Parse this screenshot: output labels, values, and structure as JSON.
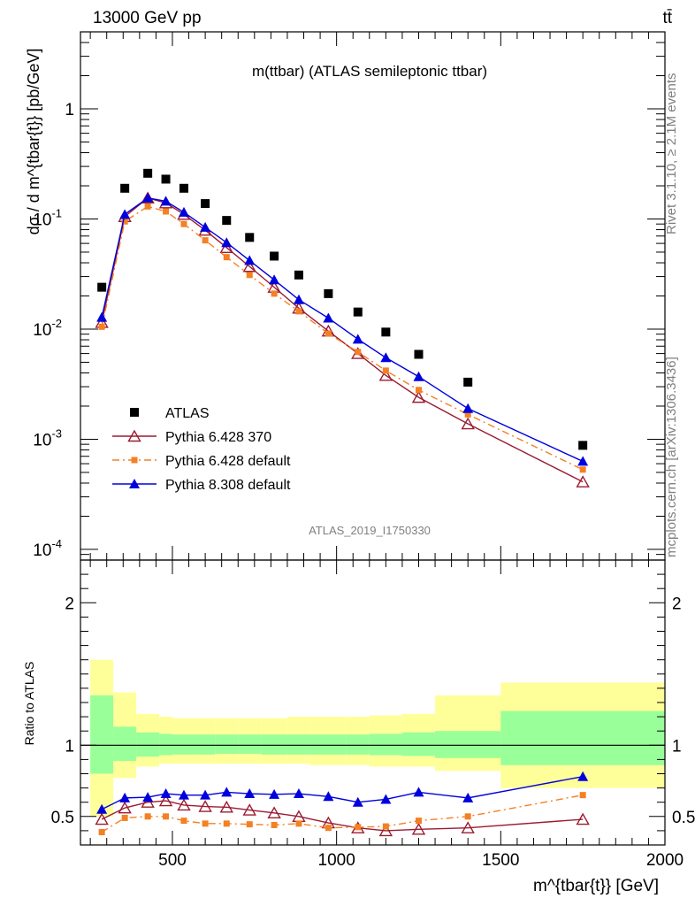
{
  "header": {
    "left": "13000 GeV pp",
    "right": "tt̄"
  },
  "side": {
    "rivet": "Rivet 3.1.10, ≥ 2.1M events",
    "mcplots": "mcplots.cern.ch [arXiv:1306.3436]"
  },
  "chart_data": [
    {
      "type": "scatter",
      "title": "m(ttbar) (ATLAS semileptonic ttbar)",
      "analysis_id": "ATLAS_2019_I1750330",
      "ylabel": "dσ / d m^{tbar{t}} [pb/GeV]",
      "yscale": "log",
      "xlim": [
        220,
        2000
      ],
      "ylim": [
        8e-05,
        5
      ],
      "ytick_labels": [
        "10^{-4}",
        "10^{-3}",
        "10^{-2}",
        "10^{-1}",
        "1"
      ],
      "legend_position": "lower-left",
      "x": [
        285,
        355,
        425,
        480,
        535,
        600,
        665,
        735,
        810,
        885,
        975,
        1065,
        1150,
        1250,
        1400,
        1750
      ],
      "series": [
        {
          "name": "ATLAS",
          "color": "#000000",
          "marker": "square",
          "values": [
            0.024,
            0.19,
            0.26,
            0.23,
            0.19,
            0.138,
            0.097,
            0.068,
            0.046,
            0.031,
            0.021,
            0.0143,
            0.0094,
            0.0059,
            0.0033,
            0.00088
          ]
        },
        {
          "name": "Pythia 6.428 370",
          "color": "#9b1b30",
          "marker": "open-triangle",
          "line": "solid",
          "values": [
            0.0115,
            0.105,
            0.155,
            0.14,
            0.11,
            0.079,
            0.055,
            0.037,
            0.024,
            0.0155,
            0.0096,
            0.006,
            0.0038,
            0.0024,
            0.00138,
            0.00041
          ]
        },
        {
          "name": "Pythia 6.428 default",
          "color": "#f48024",
          "marker": "square-small",
          "line": "dashdot",
          "values": [
            0.0105,
            0.095,
            0.13,
            0.117,
            0.09,
            0.064,
            0.045,
            0.031,
            0.021,
            0.0145,
            0.0091,
            0.0062,
            0.0042,
            0.0028,
            0.00168,
            0.00053
          ]
        },
        {
          "name": "Pythia 8.308 default",
          "color": "#0000dd",
          "marker": "triangle",
          "line": "solid",
          "values": [
            0.0128,
            0.11,
            0.155,
            0.145,
            0.115,
            0.084,
            0.061,
            0.042,
            0.028,
            0.0185,
            0.0126,
            0.0081,
            0.0055,
            0.0037,
            0.0019,
            0.00063
          ]
        }
      ]
    },
    {
      "type": "line",
      "ylabel": "Ratio to ATLAS",
      "xlabel": "m^{tbar{t}} [GeV]",
      "xlim": [
        220,
        2000
      ],
      "ylim": [
        0.3,
        2.3
      ],
      "xticks": [
        500,
        1000,
        1500,
        2000
      ],
      "yticks": [
        0.5,
        1,
        2
      ],
      "bin_edges": [
        250,
        320,
        390,
        460,
        500,
        570,
        630,
        700,
        770,
        850,
        920,
        1030,
        1100,
        1200,
        1300,
        1500,
        2000
      ],
      "bands": {
        "inner": [
          [
            0.8,
            1.35
          ],
          [
            0.89,
            1.13
          ],
          [
            0.92,
            1.09
          ],
          [
            0.93,
            1.08
          ],
          [
            0.935,
            1.075
          ],
          [
            0.935,
            1.075
          ],
          [
            0.94,
            1.075
          ],
          [
            0.94,
            1.075
          ],
          [
            0.935,
            1.075
          ],
          [
            0.935,
            1.075
          ],
          [
            0.935,
            1.075
          ],
          [
            0.935,
            1.075
          ],
          [
            0.93,
            1.08
          ],
          [
            0.925,
            1.09
          ],
          [
            0.91,
            1.1
          ],
          [
            0.86,
            1.24
          ]
        ],
        "outer": [
          [
            0.5,
            1.6
          ],
          [
            0.77,
            1.37
          ],
          [
            0.85,
            1.22
          ],
          [
            0.87,
            1.2
          ],
          [
            0.87,
            1.19
          ],
          [
            0.87,
            1.19
          ],
          [
            0.87,
            1.19
          ],
          [
            0.87,
            1.19
          ],
          [
            0.87,
            1.19
          ],
          [
            0.87,
            1.2
          ],
          [
            0.86,
            1.2
          ],
          [
            0.86,
            1.2
          ],
          [
            0.85,
            1.21
          ],
          [
            0.85,
            1.22
          ],
          [
            0.82,
            1.35
          ],
          [
            0.7,
            1.44
          ]
        ],
        "inner_color": "#99ff99",
        "outer_color": "#ffff99"
      },
      "x": [
        285,
        355,
        425,
        480,
        535,
        600,
        665,
        735,
        810,
        885,
        975,
        1065,
        1150,
        1250,
        1400,
        1750
      ],
      "series": [
        {
          "name": "Pythia 6.428 370",
          "color": "#9b1b30",
          "values": [
            0.48,
            0.56,
            0.6,
            0.61,
            0.58,
            0.57,
            0.565,
            0.545,
            0.525,
            0.5,
            0.455,
            0.42,
            0.4,
            0.41,
            0.42,
            0.48
          ]
        },
        {
          "name": "Pythia 6.428 default",
          "color": "#f48024",
          "values": [
            0.39,
            0.49,
            0.5,
            0.5,
            0.47,
            0.45,
            0.45,
            0.445,
            0.44,
            0.45,
            0.42,
            0.425,
            0.43,
            0.47,
            0.5,
            0.65
          ]
        },
        {
          "name": "Pythia 8.308 default",
          "color": "#0000dd",
          "values": [
            0.55,
            0.63,
            0.635,
            0.66,
            0.65,
            0.65,
            0.67,
            0.66,
            0.655,
            0.66,
            0.64,
            0.6,
            0.62,
            0.67,
            0.63,
            0.78
          ]
        }
      ]
    }
  ]
}
